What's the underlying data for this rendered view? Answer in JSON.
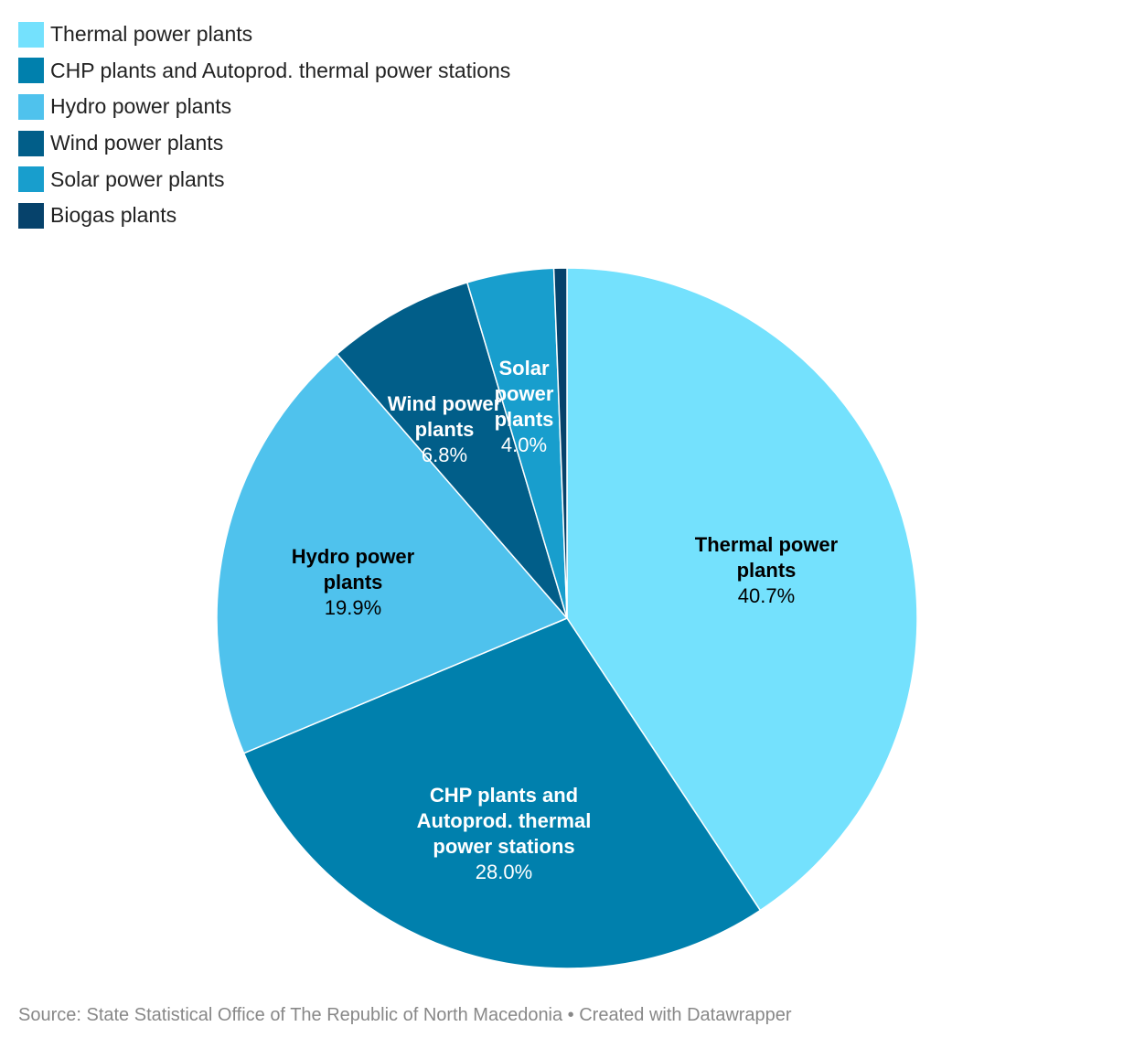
{
  "chart_data": {
    "type": "pie",
    "categories": [
      "Thermal power plants",
      "CHP plants and Autoprod. thermal power stations",
      "Hydro power plants",
      "Wind power plants",
      "Solar power plants",
      "Biogas plants"
    ],
    "values": [
      40.7,
      28.0,
      19.9,
      6.8,
      4.0,
      0.6
    ],
    "value_labels": [
      "40.7%",
      "28.0%",
      "19.9%",
      "6.8%",
      "4.0%",
      ""
    ],
    "slice_label_lines": [
      [
        "Thermal power",
        "plants"
      ],
      [
        "CHP plants and",
        "Autoprod. thermal",
        "power stations"
      ],
      [
        "Hydro power",
        "plants"
      ],
      [
        "Wind power",
        "plants"
      ],
      [
        "Solar",
        "power",
        "plants"
      ],
      []
    ],
    "colors": [
      "#74e1fd",
      "#0080ad",
      "#4fc2ed",
      "#015e89",
      "#189ecd",
      "#06426b"
    ],
    "label_colors": [
      "#000000",
      "#ffffff",
      "#000000",
      "#ffffff",
      "#ffffff",
      "#ffffff"
    ],
    "legend_position": "top-left",
    "start_angle": "12 o'clock, clockwise"
  },
  "legend": {
    "items": [
      {
        "label": "Thermal power plants",
        "color": "#74e1fd"
      },
      {
        "label": "CHP plants and Autoprod. thermal power stations",
        "color": "#0080ad"
      },
      {
        "label": "Hydro power plants",
        "color": "#4fc2ed"
      },
      {
        "label": "Wind power plants",
        "color": "#015e89"
      },
      {
        "label": "Solar power plants",
        "color": "#189ecd"
      },
      {
        "label": "Biogas plants",
        "color": "#06426b"
      }
    ]
  },
  "footer": {
    "source": "Source: State Statistical Office of The Republic of North Macedonia • Created with Datawrapper"
  }
}
